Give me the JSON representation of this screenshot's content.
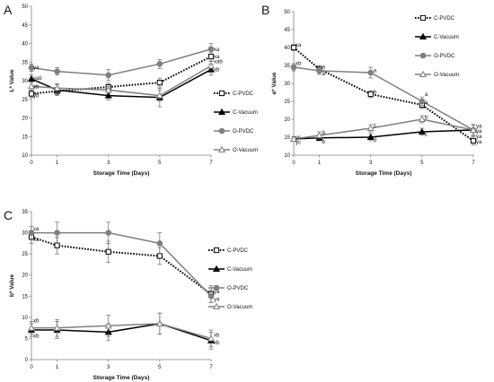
{
  "chart_data": [
    {
      "type": "line",
      "panel": "A",
      "title": "",
      "xlabel": "Storage Time  (Days)",
      "ylabel": "L* Value",
      "x": [
        0,
        1,
        3,
        5,
        7
      ],
      "xticks": [
        "0",
        "1",
        "3",
        "5",
        "7"
      ],
      "ylim": [
        10,
        50
      ],
      "yticks": [
        "10",
        "15",
        "20",
        "25",
        "30",
        "35",
        "40",
        "45",
        "50"
      ],
      "grid": false,
      "legend": "right",
      "series": [
        {
          "name": "C-PVDC",
          "values": [
            26.5,
            27.2,
            28.3,
            29.5,
            36.5
          ],
          "color": "#000000",
          "style": "dotted",
          "marker": "square-open",
          "errors": [
            1.0,
            1.0,
            1.0,
            1.2,
            1.2
          ]
        },
        {
          "name": "C-Vacuum",
          "values": [
            30.5,
            27.5,
            26.0,
            25.5,
            33.0
          ],
          "color": "#000000",
          "style": "solid",
          "marker": "triangle-filled",
          "errors": [
            1.0,
            1.5,
            1.2,
            2.5,
            1.5
          ]
        },
        {
          "name": "O-PVDC",
          "values": [
            33.5,
            32.5,
            31.5,
            34.5,
            38.5
          ],
          "color": "#7f7f7f",
          "style": "solid",
          "marker": "circle-filled",
          "errors": [
            1.0,
            1.0,
            1.5,
            1.2,
            1.5
          ]
        },
        {
          "name": "O-Vacuum",
          "values": [
            28.5,
            28.0,
            27.5,
            26.0,
            34.0
          ],
          "color": "#7f7f7f",
          "style": "solid",
          "marker": "triangle-open",
          "errors": [
            1.0,
            1.2,
            1.0,
            1.5,
            1.2
          ]
        }
      ],
      "annotations": [
        {
          "x": 0,
          "y": 33.6,
          "text": "ya"
        },
        {
          "x": 0,
          "y": 30.7,
          "text": "xab"
        },
        {
          "x": 0,
          "y": 28.4,
          "text": "xb"
        },
        {
          "x": 0,
          "y": 26.0,
          "text": "yb"
        },
        {
          "x": 7,
          "y": 38.4,
          "text": "xa"
        },
        {
          "x": 7,
          "y": 36.5,
          "text": "xa"
        },
        {
          "x": 7,
          "y": 35.2,
          "text": "xab"
        },
        {
          "x": 7,
          "y": 33.0,
          "text": "xb"
        }
      ]
    },
    {
      "type": "line",
      "panel": "B",
      "title": "",
      "xlabel": "Storage Time  (Days)",
      "ylabel": "a* Value",
      "x": [
        0,
        1,
        3,
        5,
        7
      ],
      "xticks": [
        "0",
        "1",
        "3",
        "5",
        "7"
      ],
      "ylim": [
        10,
        50
      ],
      "yticks": [
        "10",
        "15",
        "20",
        "25",
        "30",
        "35",
        "40",
        "45",
        "50"
      ],
      "grid": false,
      "legend": "top-right",
      "series": [
        {
          "name": "C-PVDC",
          "values": [
            40.0,
            34.0,
            27.0,
            24.0,
            14.0
          ],
          "color": "#000000",
          "style": "dotted",
          "marker": "square-open",
          "errors": [
            0.8,
            1.0,
            1.0,
            1.0,
            1.2
          ]
        },
        {
          "name": "C-Vacuum",
          "values": [
            14.5,
            14.8,
            15.0,
            16.5,
            17.0
          ],
          "color": "#000000",
          "style": "solid",
          "marker": "triangle-filled",
          "errors": [
            0.6,
            0.8,
            1.0,
            1.0,
            1.5
          ]
        },
        {
          "name": "O-PVDC",
          "values": [
            34.5,
            33.5,
            33.0,
            25.0,
            17.0
          ],
          "color": "#7f7f7f",
          "style": "solid",
          "marker": "circle-filled",
          "errors": [
            1.0,
            1.0,
            1.5,
            1.2,
            1.5
          ]
        },
        {
          "name": "O-Vacuum",
          "values": [
            14.5,
            15.5,
            17.5,
            20.0,
            17.0
          ],
          "color": "#7f7f7f",
          "style": "solid",
          "marker": "triangle-open",
          "errors": [
            0.6,
            1.0,
            1.0,
            1.0,
            1.5
          ]
        }
      ],
      "annotations": [
        {
          "x": 0,
          "y": 40.8,
          "text": "xa"
        },
        {
          "x": 0,
          "y": 35.6,
          "text": "xb"
        },
        {
          "x": 0,
          "y": 15.0,
          "text": "yc"
        },
        {
          "x": 0,
          "y": 13.6,
          "text": "yc"
        },
        {
          "x": 1,
          "y": 34.6,
          "text": "a"
        },
        {
          "x": 1,
          "y": 32.7,
          "text": "a"
        },
        {
          "x": 1,
          "y": 16.3,
          "text": "b"
        },
        {
          "x": 1,
          "y": 13.8,
          "text": "b"
        },
        {
          "x": 3,
          "y": 33.6,
          "text": "a"
        },
        {
          "x": 3,
          "y": 27.6,
          "text": "b"
        },
        {
          "x": 3,
          "y": 18.4,
          "text": "c"
        },
        {
          "x": 3,
          "y": 14.3,
          "text": "d"
        },
        {
          "x": 5,
          "y": 27.0,
          "text": "a"
        },
        {
          "x": 5,
          "y": 24.7,
          "text": "a"
        },
        {
          "x": 5,
          "y": 20.6,
          "text": "b"
        },
        {
          "x": 5,
          "y": 15.7,
          "text": "c"
        },
        {
          "x": 7,
          "y": 18.1,
          "text": "ya"
        },
        {
          "x": 7,
          "y": 16.8,
          "text": "ya"
        },
        {
          "x": 7,
          "y": 15.3,
          "text": "ya"
        },
        {
          "x": 7,
          "y": 13.8,
          "text": "ya"
        }
      ]
    },
    {
      "type": "line",
      "panel": "C",
      "title": "",
      "xlabel": "Storage Time  (Days)",
      "ylabel": "b* Value",
      "x": [
        0,
        1,
        3,
        5,
        7
      ],
      "xticks": [
        "0",
        "1",
        "3",
        "5",
        "7"
      ],
      "ylim": [
        0,
        35
      ],
      "yticks": [
        "0",
        "5",
        "10",
        "15",
        "20",
        "25",
        "30",
        "35"
      ],
      "grid": false,
      "legend": "right",
      "series": [
        {
          "name": "C-PVDC",
          "values": [
            29.0,
            27.0,
            25.5,
            24.5,
            15.5
          ],
          "color": "#000000",
          "style": "dotted",
          "marker": "square-open",
          "errors": [
            1.5,
            2.0,
            2.5,
            2.0,
            2.0
          ]
        },
        {
          "name": "C-Vacuum",
          "values": [
            7.0,
            7.0,
            6.5,
            8.5,
            4.5
          ],
          "color": "#000000",
          "style": "solid",
          "marker": "triangle-filled",
          "errors": [
            1.5,
            2.0,
            2.0,
            2.5,
            2.0
          ]
        },
        {
          "name": "O-PVDC",
          "values": [
            30.0,
            30.0,
            30.0,
            27.5,
            15.0
          ],
          "color": "#7f7f7f",
          "style": "solid",
          "marker": "circle-filled",
          "errors": [
            1.5,
            2.5,
            2.5,
            2.5,
            1.5
          ]
        },
        {
          "name": "O-Vacuum",
          "values": [
            7.5,
            7.5,
            8.0,
            8.5,
            5.0
          ],
          "color": "#7f7f7f",
          "style": "solid",
          "marker": "triangle-open",
          "errors": [
            1.5,
            2.0,
            2.5,
            2.5,
            2.0
          ]
        }
      ],
      "annotations": [
        {
          "x": 0,
          "y": 31.0,
          "text": "xa"
        },
        {
          "x": 0,
          "y": 28.4,
          "text": "xa"
        },
        {
          "x": 0,
          "y": 9.2,
          "text": "xb"
        },
        {
          "x": 0,
          "y": 5.6,
          "text": "xb"
        },
        {
          "x": 7,
          "y": 16.1,
          "text": "ya"
        },
        {
          "x": 7,
          "y": 14.3,
          "text": "ya"
        },
        {
          "x": 7,
          "y": 5.8,
          "text": "xb"
        },
        {
          "x": 7,
          "y": 4.0,
          "text": "xb"
        }
      ]
    }
  ]
}
